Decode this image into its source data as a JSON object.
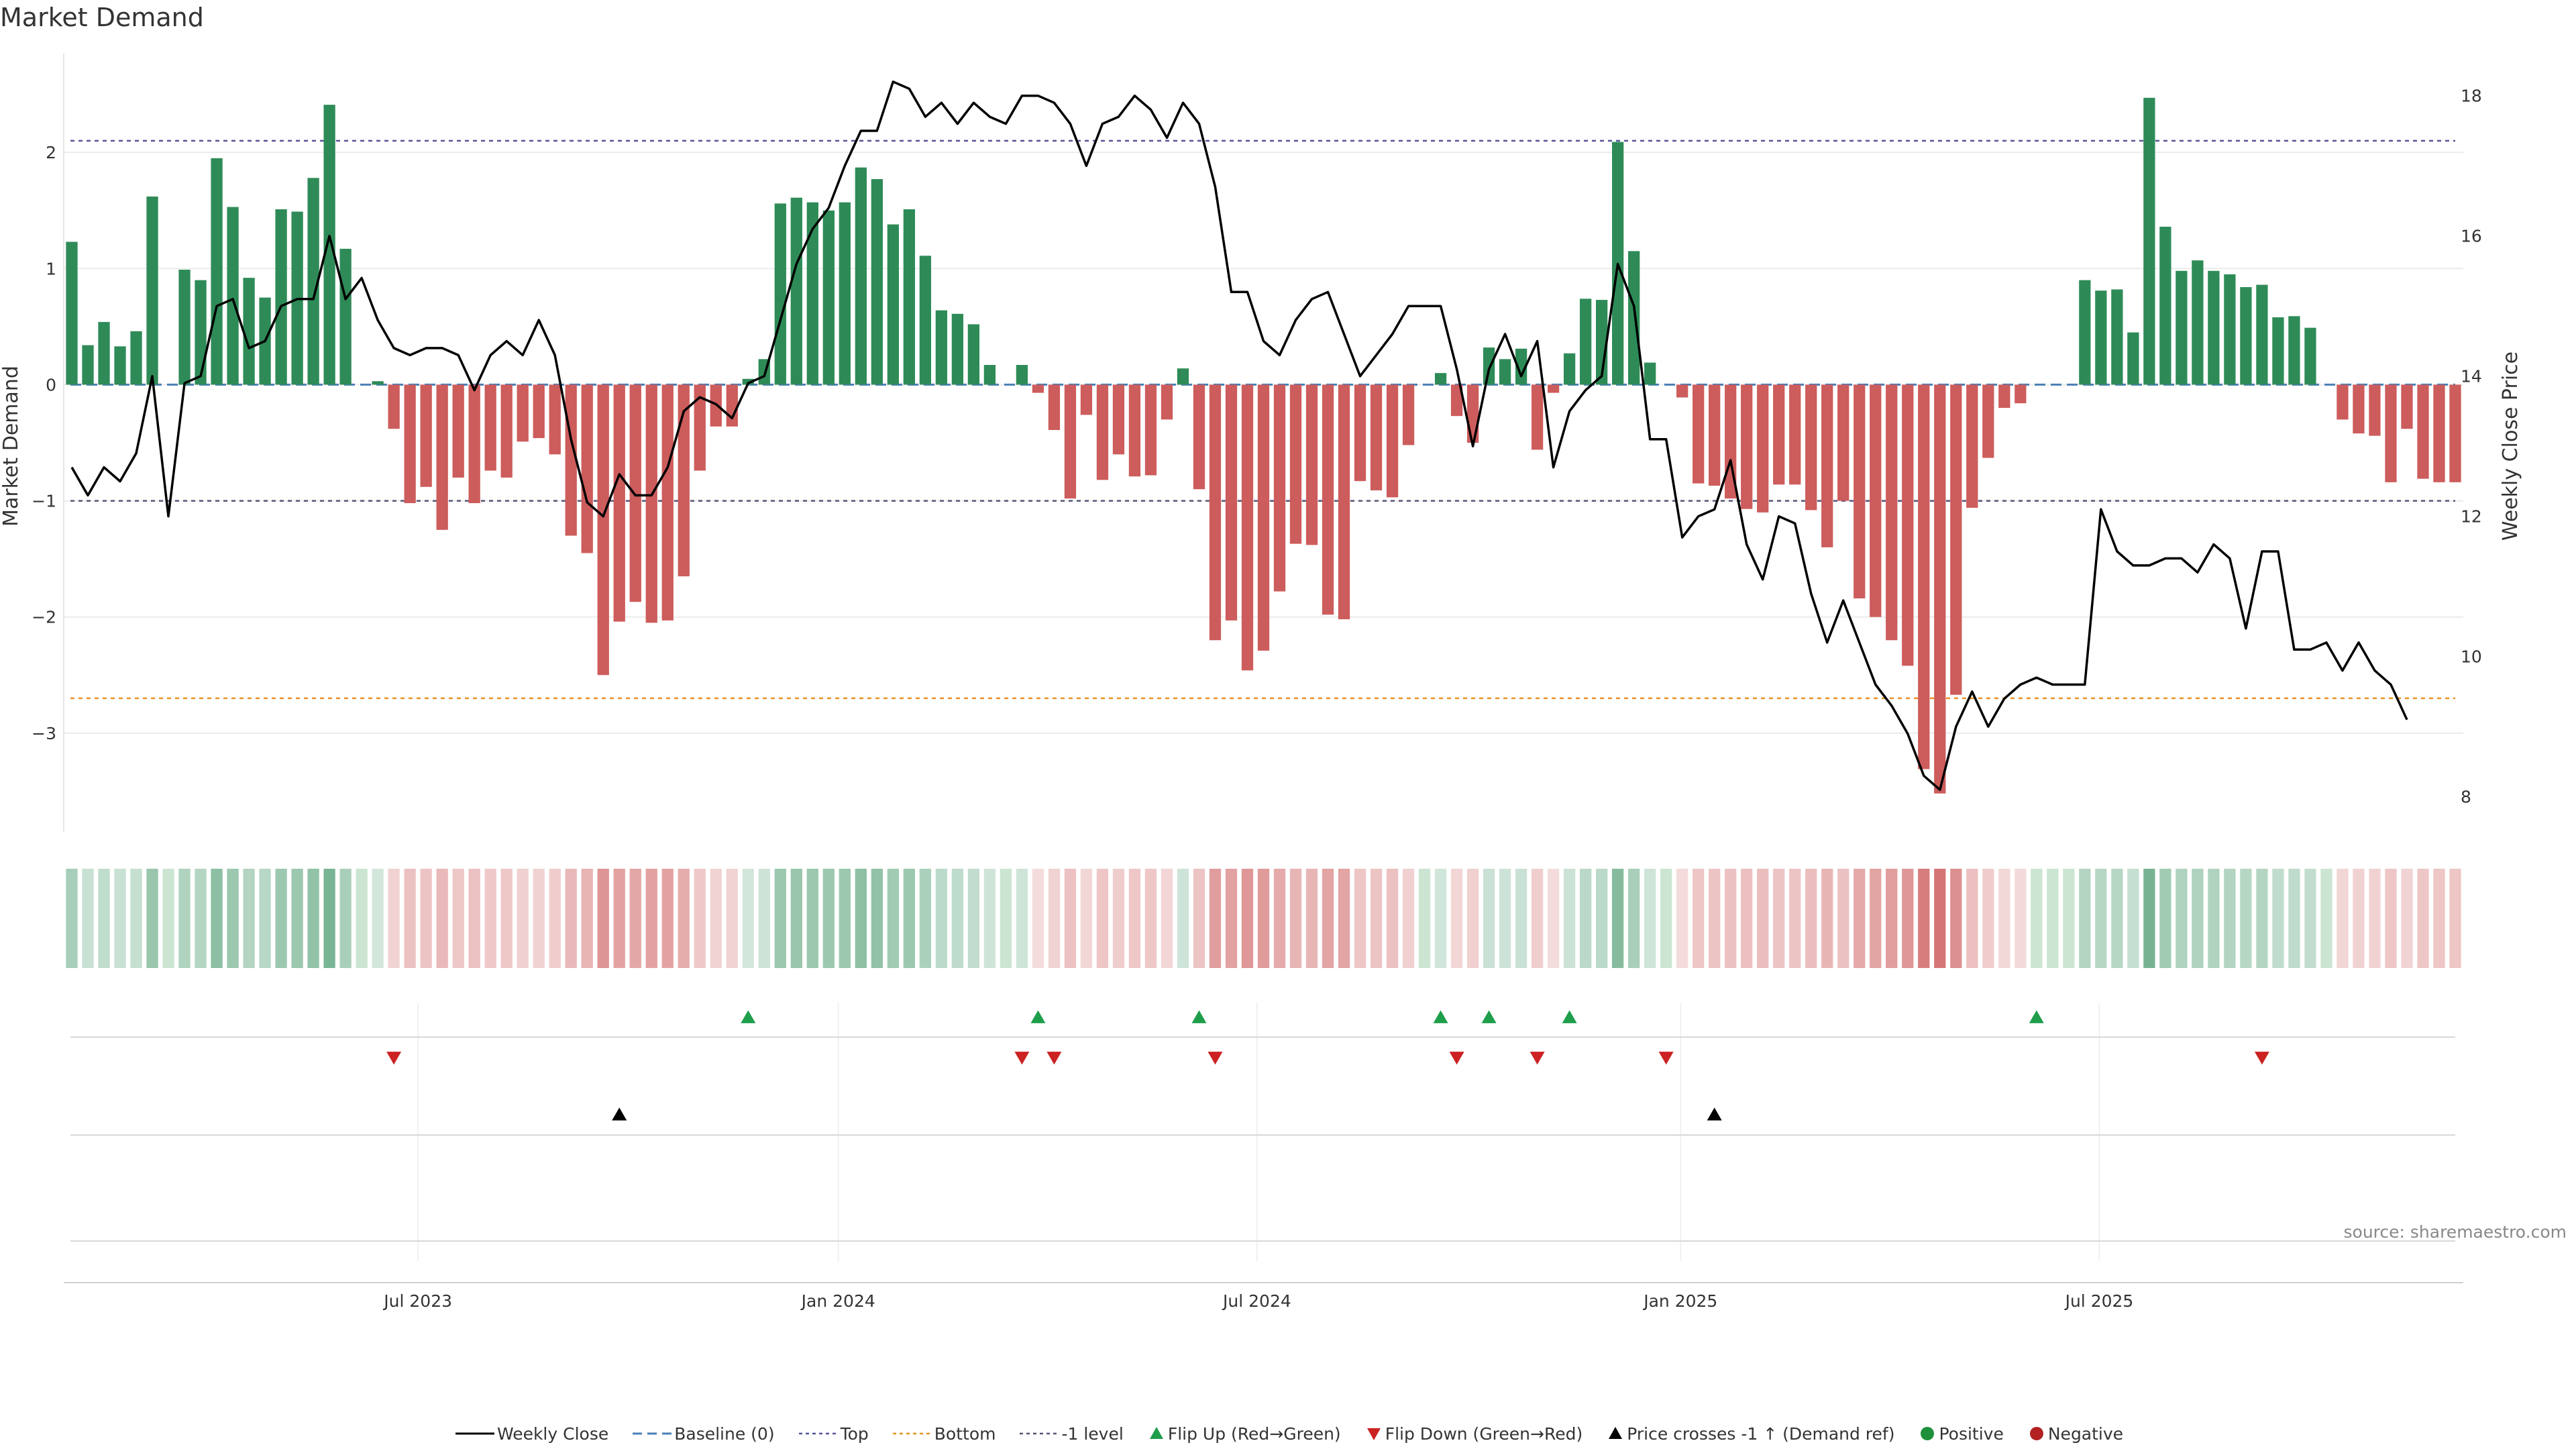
{
  "title": "Market Demand",
  "source": "source: sharemaestro.com",
  "colors": {
    "positive": "#2e8b57",
    "negative": "#cd5c5c",
    "line": "#000000",
    "baseline": "#4a7fb5",
    "top": "#555599",
    "bottom": "#e69420",
    "neg1": "#555577",
    "flip_up": "#1e9e4a",
    "flip_down": "#cc2222"
  },
  "chart_data": {
    "type": "bar+line",
    "title": "Market Demand",
    "ylabel_left": "Market Demand",
    "ylabel_right": "Weekly Close Price",
    "ylim_left": [
      -3.85,
      2.85
    ],
    "ylim_right": [
      7.5,
      18.6
    ],
    "yticks_left": [
      {
        "v": 2,
        "label": "2"
      },
      {
        "v": 1,
        "label": "1"
      },
      {
        "v": 0,
        "label": "0"
      },
      {
        "v": -1,
        "label": "−1"
      },
      {
        "v": -2,
        "label": "−2"
      },
      {
        "v": -3,
        "label": "−3"
      }
    ],
    "yticks_right": [
      {
        "v": 18,
        "label": "18"
      },
      {
        "v": 16,
        "label": "16"
      },
      {
        "v": 14,
        "label": "14"
      },
      {
        "v": 12,
        "label": "12"
      },
      {
        "v": 10,
        "label": "10"
      },
      {
        "v": 8,
        "label": "8"
      }
    ],
    "x_start": "2023-01-12",
    "x_end": "2025-10-23",
    "x_period_days": 7,
    "xticks": [
      {
        "i": 21.5,
        "label": "Jul 2023"
      },
      {
        "i": 47.6,
        "label": "Jan 2024"
      },
      {
        "i": 73.6,
        "label": "Jul 2024"
      },
      {
        "i": 99.9,
        "label": "Jan 2025"
      },
      {
        "i": 125.9,
        "label": "Jul 2025"
      }
    ],
    "levels": {
      "top": 2.1,
      "bottom": -2.7,
      "minus_one": -1.0,
      "baseline": 0
    },
    "demand": [
      1.23,
      0.34,
      0.54,
      0.33,
      0.46,
      1.62,
      0.0,
      0.99,
      0.9,
      1.95,
      1.53,
      0.92,
      0.75,
      1.51,
      1.49,
      1.78,
      2.41,
      1.17,
      0.0,
      0.03,
      -0.38,
      -1.02,
      -0.88,
      -1.25,
      -0.8,
      -1.02,
      -0.74,
      -0.8,
      -0.49,
      -0.46,
      -0.6,
      -1.3,
      -1.45,
      -2.5,
      -2.04,
      -1.87,
      -2.05,
      -2.03,
      -1.65,
      -0.74,
      -0.36,
      -0.36,
      0.05,
      0.22,
      1.56,
      1.61,
      1.57,
      1.5,
      1.57,
      1.87,
      1.77,
      1.38,
      1.51,
      1.11,
      0.64,
      0.61,
      0.52,
      0.17,
      0.0,
      0.17,
      -0.07,
      -0.39,
      -0.98,
      -0.26,
      -0.82,
      -0.6,
      -0.79,
      -0.78,
      -0.3,
      0.14,
      -0.9,
      -2.2,
      -2.03,
      -2.46,
      -2.29,
      -1.78,
      -1.37,
      -1.38,
      -1.98,
      -2.02,
      -0.83,
      -0.91,
      -0.97,
      -0.52,
      0.0,
      0.1,
      -0.27,
      -0.5,
      0.32,
      0.22,
      0.31,
      -0.56,
      -0.07,
      0.27,
      0.74,
      0.73,
      2.09,
      1.15,
      0.19,
      0.0,
      -0.11,
      -0.85,
      -0.87,
      -0.98,
      -1.07,
      -1.1,
      -0.86,
      -0.86,
      -1.08,
      -1.4,
      -1.0,
      -1.84,
      -2.0,
      -2.2,
      -2.42,
      -3.31,
      -3.52,
      -2.67,
      -1.06,
      -0.63,
      -0.2,
      -0.16,
      0.0,
      0.0,
      0.0,
      0.9,
      0.81,
      0.82,
      0.45,
      2.47,
      1.36,
      0.98,
      1.07,
      0.98,
      0.95,
      0.84,
      0.86,
      0.58,
      0.59,
      0.49,
      0.0,
      -0.3,
      -0.42,
      -0.44,
      -0.84,
      -0.38,
      -0.81,
      -0.84,
      -0.84
    ],
    "close": [
      12.7,
      12.3,
      12.7,
      12.5,
      12.9,
      14.0,
      12.0,
      13.9,
      14.0,
      15.0,
      15.1,
      14.4,
      14.5,
      15.0,
      15.1,
      15.1,
      16.0,
      15.1,
      15.4,
      14.8,
      14.4,
      14.3,
      14.4,
      14.4,
      14.3,
      13.8,
      14.3,
      14.5,
      14.3,
      14.8,
      14.3,
      13.1,
      12.2,
      12.0,
      12.6,
      12.3,
      12.3,
      12.7,
      13.5,
      13.7,
      13.6,
      13.4,
      13.9,
      14.0,
      14.8,
      15.6,
      16.1,
      16.4,
      17.0,
      17.5,
      17.5,
      18.2,
      18.1,
      17.7,
      17.9,
      17.6,
      17.9,
      17.7,
      17.6,
      18.0,
      18.0,
      17.9,
      17.6,
      17.0,
      17.6,
      17.7,
      18.0,
      17.8,
      17.4,
      17.9,
      17.6,
      16.7,
      15.2,
      15.2,
      14.5,
      14.3,
      14.8,
      15.1,
      15.2,
      14.6,
      14.0,
      14.3,
      14.6,
      15.0,
      15.0,
      15.0,
      14.1,
      13.0,
      14.1,
      14.6,
      14.0,
      14.5,
      12.7,
      13.5,
      13.8,
      14.0,
      15.6,
      15.0,
      13.1,
      13.1,
      11.7,
      12.0,
      12.1,
      12.8,
      11.6,
      11.1,
      12.0,
      11.9,
      10.9,
      10.2,
      10.8,
      10.2,
      9.6,
      9.3,
      8.9,
      8.3,
      8.1,
      9.0,
      9.5,
      9.0,
      9.4,
      9.6,
      9.7,
      9.6,
      9.6,
      9.6,
      12.1,
      11.5,
      11.3,
      11.3,
      11.4,
      11.4,
      11.2,
      11.6,
      11.4,
      10.4,
      11.5,
      11.5,
      10.1,
      10.1,
      10.2,
      9.8,
      10.2,
      9.8,
      9.6,
      9.1
    ],
    "flip_up_idx": [
      42,
      60,
      70,
      85,
      88,
      93,
      122
    ],
    "flip_down_idx": [
      20,
      59,
      61,
      71,
      86,
      91,
      99,
      136
    ],
    "price_cross_idx": [
      34,
      102
    ]
  },
  "legend": [
    {
      "key": "line",
      "label": "Weekly Close"
    },
    {
      "key": "baseline",
      "label": "Baseline (0)"
    },
    {
      "key": "top",
      "label": "Top"
    },
    {
      "key": "bottom",
      "label": "Bottom"
    },
    {
      "key": "neg1",
      "label": "-1 level"
    },
    {
      "key": "flip_up",
      "label": "Flip Up (Red→Green)"
    },
    {
      "key": "flip_down",
      "label": "Flip Down (Green→Red)"
    },
    {
      "key": "cross",
      "label": "Price crosses -1 ↑ (Demand ref)"
    },
    {
      "key": "positive",
      "label": "Positive"
    },
    {
      "key": "negative",
      "label": "Negative"
    }
  ]
}
